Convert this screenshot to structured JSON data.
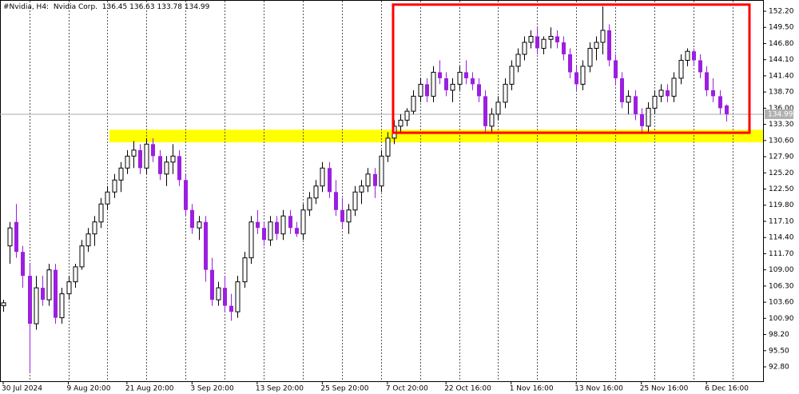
{
  "chart_data": {
    "type": "candlestick",
    "title": "#Nvidia, H4:",
    "subtitle": "Nvidia Corp.",
    "categories": [
      "30 Jul 2024",
      null,
      null,
      null,
      null,
      null,
      null,
      null,
      null,
      null,
      "9 Aug 20:00",
      null,
      null,
      null,
      null,
      null,
      null,
      null,
      null,
      "21 Aug 20:00",
      null,
      null,
      null,
      null,
      null,
      null,
      null,
      null,
      null,
      "3 Sep 20:00",
      null,
      null,
      null,
      null,
      null,
      null,
      null,
      null,
      null,
      "13 Sep 20:00",
      null,
      null,
      null,
      null,
      null,
      null,
      null,
      null,
      null,
      "25 Sep 20:00",
      null,
      null,
      null,
      null,
      null,
      null,
      null,
      null,
      null,
      "7 Oct 20:00",
      null,
      null,
      null,
      null,
      null,
      null,
      null,
      null,
      "22 Oct 16:00",
      null,
      null,
      null,
      null,
      null,
      null,
      null,
      null,
      null,
      "1 Nov 16:00",
      null,
      null,
      null,
      null,
      null,
      null,
      null,
      null,
      null,
      "13 Nov 16:00",
      null,
      null,
      null,
      null,
      null,
      null,
      null,
      null,
      null,
      "25 Nov 16:00",
      null,
      null,
      null,
      null,
      null,
      null,
      null,
      null,
      null,
      "6 Dec 16:00",
      null,
      null,
      null
    ],
    "open": [
      103,
      113,
      117,
      112,
      108,
      100,
      106,
      104,
      109,
      101,
      105,
      107,
      109.5,
      113,
      115,
      117,
      120,
      122,
      124,
      126,
      128,
      129,
      126,
      130,
      128,
      125,
      127,
      128,
      124,
      119,
      116,
      117,
      109,
      104,
      106,
      103,
      102,
      107,
      111,
      117,
      116,
      114,
      117,
      115,
      118,
      116,
      115,
      119,
      121,
      123,
      126,
      122,
      119,
      117,
      119,
      122,
      123,
      125,
      123,
      128,
      131,
      133,
      134,
      135.5,
      138,
      140,
      138,
      142,
      141,
      139,
      140,
      142,
      141,
      140,
      138,
      133,
      135,
      137,
      140,
      143,
      145,
      147,
      148,
      146,
      147.5,
      148,
      147,
      145,
      142,
      140,
      143,
      146,
      147,
      149,
      144,
      141,
      137,
      138,
      135,
      133,
      136,
      138,
      139,
      138,
      141,
      144,
      145.5,
      144,
      142,
      139,
      138,
      136.45
    ],
    "high": [
      104,
      117,
      120,
      113,
      110,
      108,
      108,
      110,
      110,
      106,
      108,
      110,
      114,
      116,
      118,
      121,
      123,
      125,
      127,
      129,
      130.5,
      130,
      131,
      131,
      129,
      128,
      130,
      129,
      125,
      120,
      118,
      118,
      111,
      107,
      108,
      105,
      108,
      112,
      118,
      119,
      117,
      118,
      118,
      119,
      119,
      117,
      120,
      122,
      124,
      127,
      127,
      124,
      121,
      120,
      123,
      124,
      126,
      126,
      129,
      132,
      134,
      135,
      136,
      139,
      141,
      141,
      143,
      144,
      142,
      141,
      143,
      144,
      142,
      141,
      139,
      136,
      138,
      141,
      144,
      146,
      148,
      149,
      149.5,
      148,
      149.5,
      149,
      148,
      146,
      143,
      144,
      147,
      148,
      153,
      150,
      145,
      142,
      139,
      139,
      136,
      137,
      139,
      140,
      140,
      142,
      145,
      146,
      146,
      145,
      143,
      141,
      139,
      136.63
    ],
    "low": [
      102,
      110,
      111,
      106,
      92,
      99,
      103,
      103,
      100,
      100,
      104,
      106,
      109,
      112,
      113,
      116,
      119,
      121,
      122,
      125,
      126,
      125,
      125,
      127,
      124,
      123,
      125,
      123,
      118,
      115,
      114,
      107,
      103,
      103,
      102,
      100.5,
      101,
      106,
      110,
      115,
      113,
      113,
      114,
      114,
      115,
      114.5,
      114,
      118,
      120,
      122,
      121,
      118,
      116,
      115,
      118,
      120,
      122,
      121,
      122,
      127,
      130,
      132,
      133,
      135,
      137,
      137,
      137,
      140,
      138,
      137,
      139,
      140,
      139,
      137,
      132,
      132,
      134,
      136,
      139,
      142,
      144,
      146,
      145,
      145,
      146,
      146,
      144,
      141,
      139,
      139,
      142,
      144,
      145,
      143,
      140,
      136,
      135,
      134,
      132,
      132,
      135,
      137,
      137,
      137,
      140,
      143,
      143,
      141,
      138,
      137,
      135,
      133.78
    ],
    "close": [
      103.5,
      116,
      112,
      108,
      100,
      106,
      104,
      109,
      101,
      105,
      107,
      109.5,
      113,
      115,
      117,
      120,
      122,
      124,
      126,
      128,
      129,
      126,
      130,
      128,
      125,
      127,
      128,
      124,
      119,
      116,
      117,
      109,
      104,
      106,
      103,
      102,
      107,
      111,
      117,
      116,
      114,
      117,
      115,
      118,
      116,
      115,
      119,
      121,
      123,
      126,
      122,
      119,
      117,
      119,
      122,
      123,
      125,
      123,
      128,
      131,
      133,
      134,
      135.5,
      138,
      140,
      138,
      142,
      141,
      139,
      140,
      142,
      141,
      140,
      138,
      133,
      135,
      137,
      140,
      143,
      145,
      147,
      148,
      146,
      147.5,
      148,
      147,
      145,
      142,
      140,
      143,
      146,
      147,
      149,
      144,
      141,
      137,
      138,
      135,
      133,
      136,
      138,
      139,
      138,
      141,
      144,
      145.5,
      144,
      142,
      139,
      138,
      136,
      134.99
    ],
    "up_color": "#ffffff",
    "down_color": "#9b1fe0",
    "ylim": [
      90.4,
      154.07
    ],
    "yticks": [
      {
        "value": 152.2,
        "label": "152.20"
      },
      {
        "value": 149.5,
        "label": "149.50"
      },
      {
        "value": 146.8,
        "label": "146.80"
      },
      {
        "value": 144.1,
        "label": "144.10"
      },
      {
        "value": 141.4,
        "label": "141.40"
      },
      {
        "value": 138.7,
        "label": "138.70"
      },
      {
        "value": 136,
        "label": "136.00"
      },
      {
        "value": 133.3,
        "label": "133.30"
      },
      {
        "value": 130.6,
        "label": "130.60"
      },
      {
        "value": 127.9,
        "label": "127.90"
      },
      {
        "value": 125.2,
        "label": "125.20"
      },
      {
        "value": 122.5,
        "label": "122.50"
      },
      {
        "value": 119.8,
        "label": "119.80"
      },
      {
        "value": 117.1,
        "label": "117.10"
      },
      {
        "value": 114.4,
        "label": "114.40"
      },
      {
        "value": 111.7,
        "label": "111.70"
      },
      {
        "value": 109,
        "label": "109.00"
      },
      {
        "value": 106.3,
        "label": "106.30"
      },
      {
        "value": 103.6,
        "label": "103.60"
      },
      {
        "value": 100.9,
        "label": "100.90"
      },
      {
        "value": 98.2,
        "label": "98.20"
      },
      {
        "value": 95.5,
        "label": "95.50"
      },
      {
        "value": 92.8,
        "label": "92.80"
      }
    ],
    "highlight_band": {
      "from": 130.3,
      "to": 132.4,
      "color": "#ffff00"
    },
    "rectangle": {
      "top": 153.3,
      "bottom": 131.9,
      "color": "#ff0000"
    }
  }
}
